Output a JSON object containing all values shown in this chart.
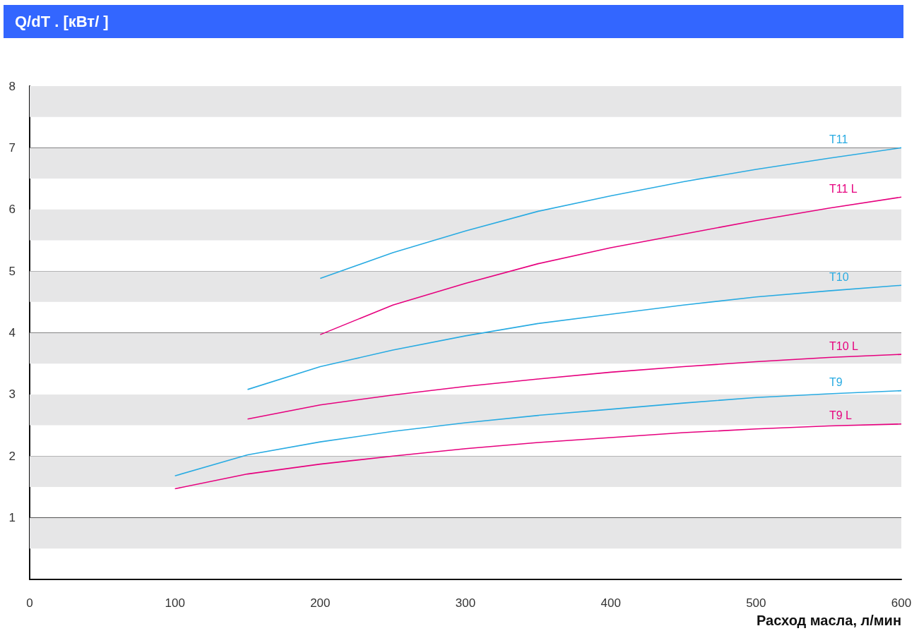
{
  "chart_data": {
    "type": "line",
    "title": "Q/dT . [кВт/  ]",
    "xlabel": "Расход масла, л/мин",
    "xlim": [
      0,
      600
    ],
    "xticks": [
      0,
      100,
      200,
      300,
      400,
      500,
      600
    ],
    "ylim": [
      0,
      8
    ],
    "yticks": [
      1,
      2,
      3,
      4,
      5,
      6,
      7,
      8
    ],
    "grid": "y",
    "marker": "none",
    "line_style": "solid",
    "bands": [
      {
        "axis": "y",
        "from": 0.5,
        "to": 1,
        "color": "#e6e6e7"
      },
      {
        "axis": "y",
        "from": 1.5,
        "to": 2,
        "color": "#e6e6e7"
      },
      {
        "axis": "y",
        "from": 2.5,
        "to": 3,
        "color": "#e6e6e7"
      },
      {
        "axis": "y",
        "from": 3.5,
        "to": 4,
        "color": "#e6e6e7"
      },
      {
        "axis": "y",
        "from": 4.5,
        "to": 5,
        "color": "#e6e6e7"
      },
      {
        "axis": "y",
        "from": 5.5,
        "to": 6,
        "color": "#e6e6e7"
      },
      {
        "axis": "y",
        "from": 6.5,
        "to": 7,
        "color": "#e6e6e7"
      },
      {
        "axis": "y",
        "from": 7.5,
        "to": 8,
        "color": "#e6e6e7"
      }
    ],
    "series": [
      {
        "name": "T11",
        "color": "#29abe2",
        "x": [
          200,
          250,
          300,
          350,
          400,
          450,
          500,
          550,
          600
        ],
        "values": [
          4.88,
          5.3,
          5.65,
          5.97,
          6.22,
          6.45,
          6.65,
          6.83,
          7.0
        ]
      },
      {
        "name": "T11 L",
        "color": "#e6007e",
        "x": [
          200,
          250,
          300,
          350,
          400,
          450,
          500,
          550,
          600
        ],
        "values": [
          3.97,
          4.45,
          4.8,
          5.12,
          5.38,
          5.6,
          5.82,
          6.02,
          6.2
        ]
      },
      {
        "name": "T10",
        "color": "#29abe2",
        "x": [
          150,
          200,
          250,
          300,
          350,
          400,
          450,
          500,
          550,
          600
        ],
        "values": [
          3.08,
          3.45,
          3.72,
          3.95,
          4.15,
          4.3,
          4.45,
          4.58,
          4.68,
          4.77
        ]
      },
      {
        "name": "T10 L",
        "color": "#e6007e",
        "x": [
          150,
          200,
          250,
          300,
          350,
          400,
          450,
          500,
          550,
          600
        ],
        "values": [
          2.6,
          2.83,
          2.99,
          3.13,
          3.25,
          3.36,
          3.45,
          3.53,
          3.6,
          3.65
        ]
      },
      {
        "name": "T9",
        "color": "#29abe2",
        "x": [
          100,
          150,
          200,
          250,
          300,
          350,
          400,
          450,
          500,
          550,
          600
        ],
        "values": [
          1.68,
          2.02,
          2.23,
          2.4,
          2.54,
          2.66,
          2.76,
          2.86,
          2.95,
          3.01,
          3.06
        ]
      },
      {
        "name": "T9 L",
        "color": "#e6007e",
        "x": [
          100,
          150,
          200,
          250,
          300,
          350,
          400,
          450,
          500,
          550,
          600
        ],
        "values": [
          1.47,
          1.71,
          1.87,
          2.0,
          2.12,
          2.22,
          2.3,
          2.38,
          2.44,
          2.49,
          2.52
        ]
      }
    ]
  }
}
